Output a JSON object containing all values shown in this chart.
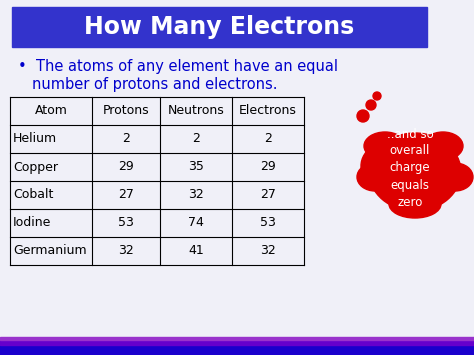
{
  "title": "How Many Electrons",
  "title_bg": "#3333cc",
  "title_color": "#ffffff",
  "bullet_text_line1": "The atoms of any element have an equal",
  "bullet_text_line2": "number of protons and electrons.",
  "bullet_color": "#0000cc",
  "bg_color": "#f0f0f8",
  "bottom_bar_dark": "#1a00cc",
  "bottom_bar_mid": "#6600cc",
  "bottom_bar_light": "#9933cc",
  "table_headers": [
    "Atom",
    "Protons",
    "Neutrons",
    "Electrons"
  ],
  "table_rows": [
    [
      "Helium",
      "2",
      "2",
      "2"
    ],
    [
      "Copper",
      "29",
      "35",
      "29"
    ],
    [
      "Cobalt",
      "27",
      "32",
      "27"
    ],
    [
      "Iodine",
      "53",
      "74",
      "53"
    ],
    [
      "Germanium",
      "32",
      "41",
      "32"
    ]
  ],
  "cloud_color": "#dd0000",
  "cloud_text": "..and so\noverall\ncharge\nequals\nzero",
  "cloud_text_color": "#ffffff",
  "figw": 4.74,
  "figh": 3.55,
  "dpi": 100
}
